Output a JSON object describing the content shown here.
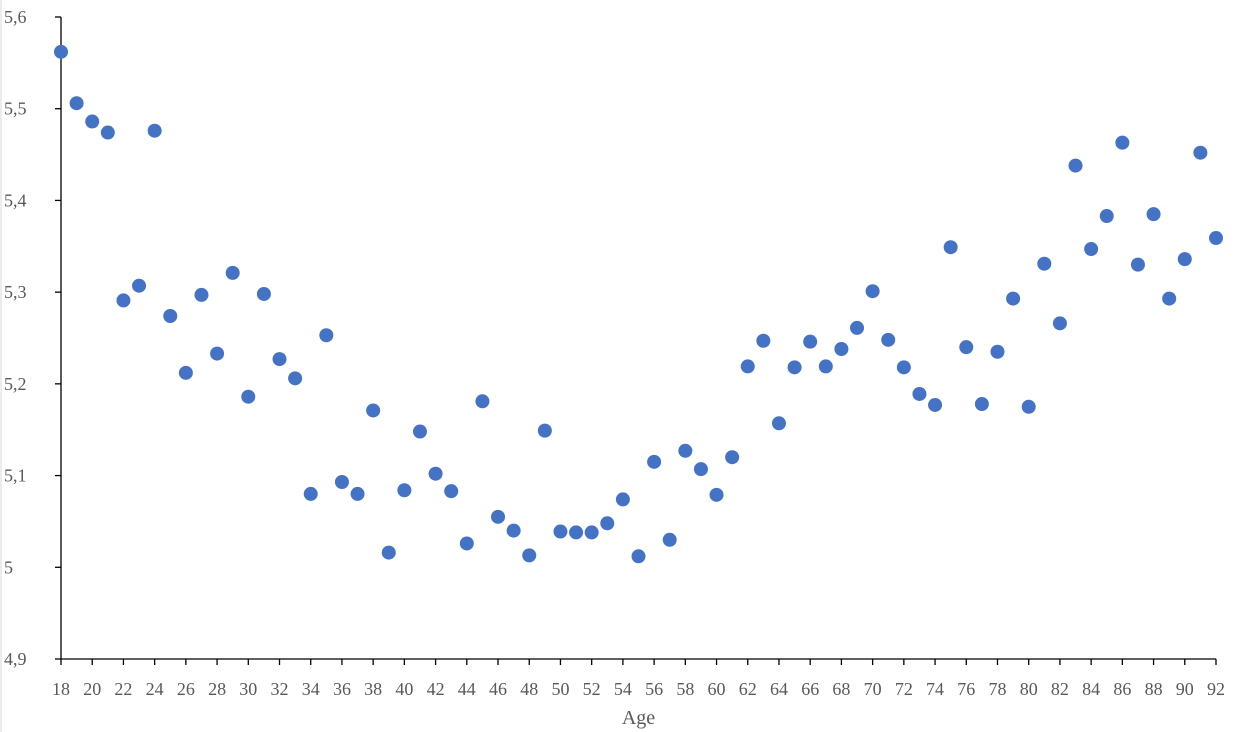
{
  "chart_data": {
    "type": "scatter",
    "title": "",
    "xlabel": "Age",
    "ylabel": "",
    "xlim": [
      18,
      92
    ],
    "ylim": [
      4.9,
      5.6
    ],
    "y_ticks": [
      "4,9",
      "5",
      "5,1",
      "5,2",
      "5,3",
      "5,4",
      "5,5",
      "5,6"
    ],
    "y_tick_values": [
      4.9,
      5.0,
      5.1,
      5.2,
      5.3,
      5.4,
      5.5,
      5.6
    ],
    "x_ticks": [
      "18",
      "20",
      "22",
      "24",
      "26",
      "28",
      "30",
      "32",
      "34",
      "36",
      "38",
      "40",
      "42",
      "44",
      "46",
      "48",
      "50",
      "52",
      "54",
      "56",
      "58",
      "60",
      "62",
      "64",
      "66",
      "68",
      "70",
      "72",
      "74",
      "76",
      "78",
      "80",
      "82",
      "84",
      "86",
      "88",
      "90",
      "92"
    ],
    "x_tick_values": [
      18,
      20,
      22,
      24,
      26,
      28,
      30,
      32,
      34,
      36,
      38,
      40,
      42,
      44,
      46,
      48,
      50,
      52,
      54,
      56,
      58,
      60,
      62,
      64,
      66,
      68,
      70,
      72,
      74,
      76,
      78,
      80,
      82,
      84,
      86,
      88,
      90,
      92
    ],
    "grid": false,
    "legend": "none",
    "marker_color": "#4472c4",
    "x": [
      18,
      19,
      20,
      21,
      22,
      23,
      24,
      25,
      26,
      27,
      28,
      29,
      30,
      31,
      32,
      33,
      34,
      35,
      36,
      37,
      38,
      39,
      40,
      41,
      42,
      43,
      44,
      45,
      46,
      47,
      48,
      49,
      50,
      51,
      52,
      53,
      54,
      55,
      56,
      57,
      58,
      59,
      60,
      61,
      62,
      63,
      64,
      65,
      66,
      67,
      68,
      69,
      70,
      71,
      72,
      73,
      74,
      75,
      76,
      77,
      78,
      79,
      80,
      81,
      82,
      83,
      84,
      85,
      86,
      87,
      88,
      89,
      90,
      91,
      92
    ],
    "y": [
      5.562,
      5.506,
      5.486,
      5.474,
      5.291,
      5.307,
      5.476,
      5.274,
      5.212,
      5.297,
      5.233,
      5.321,
      5.186,
      5.298,
      5.227,
      5.206,
      5.08,
      5.253,
      5.093,
      5.08,
      5.171,
      5.016,
      5.084,
      5.148,
      5.102,
      5.083,
      5.026,
      5.181,
      5.055,
      5.04,
      5.013,
      5.149,
      5.039,
      5.038,
      5.038,
      5.048,
      5.074,
      5.012,
      5.115,
      5.03,
      5.127,
      5.107,
      5.079,
      5.12,
      5.219,
      5.247,
      5.157,
      5.218,
      5.246,
      5.219,
      5.238,
      5.261,
      5.301,
      5.248,
      5.218,
      5.189,
      5.177,
      5.349,
      5.24,
      5.178,
      5.235,
      5.293,
      5.175,
      5.331,
      5.266,
      5.438,
      5.347,
      5.383,
      5.463,
      5.33,
      5.385,
      5.293,
      5.336,
      5.452,
      5.359
    ]
  }
}
